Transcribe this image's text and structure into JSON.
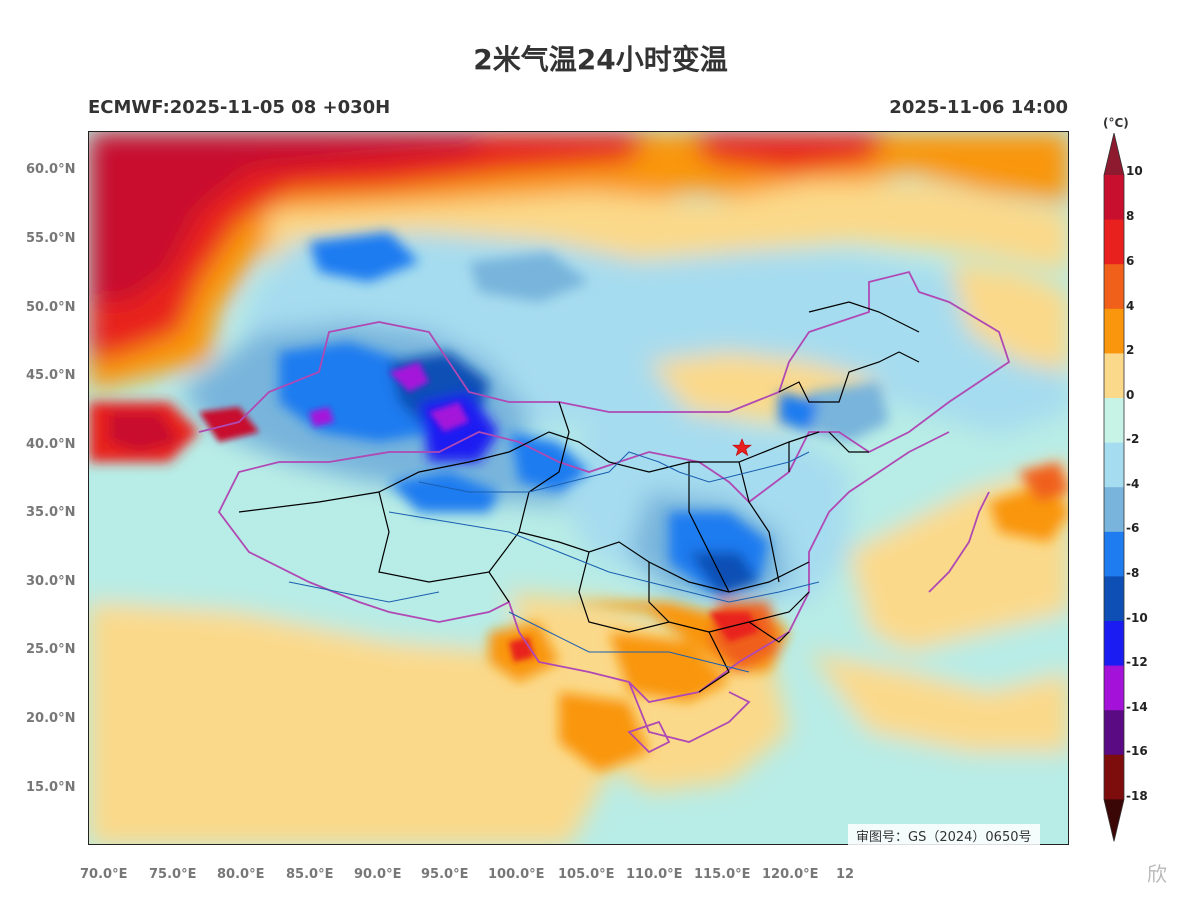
{
  "header": {
    "title": "2米气温24小时变温",
    "run_info": "ECMWF:2025-11-05 08 +030H",
    "valid_time": "2025-11-06 14:00"
  },
  "axes": {
    "lat_labels": [
      "60.0°N",
      "55.0°N",
      "50.0°N",
      "45.0°N",
      "40.0°N",
      "35.0°N",
      "30.0°N",
      "25.0°N",
      "20.0°N",
      "15.0°N"
    ],
    "lon_labels": [
      "70.0°E",
      "75.0°E",
      "80.0°E",
      "85.0°E",
      "90.0°E",
      "95.0°E",
      "100.0°E",
      "105.0°E",
      "110.0°E",
      "115.0°E",
      "120.0°E",
      "12"
    ]
  },
  "colorbar": {
    "unit": "(°C)",
    "labels": [
      "10",
      "8",
      "6",
      "4",
      "2",
      "0",
      "-2",
      "-4",
      "-6",
      "-8",
      "-10",
      "-12",
      "-14",
      "-16",
      "-18"
    ],
    "colors": [
      "#c8102e",
      "#e8201e",
      "#f0601a",
      "#f9960e",
      "#fbd98a",
      "#c6f3e6",
      "#a6dcef",
      "#78b4dc",
      "#1f7cf0",
      "#0d4fb5",
      "#1a1cf2",
      "#a412da",
      "#5a0a82",
      "#7d0c0c"
    ],
    "top_cap_color": "#8e1a30",
    "bottom_cap_color": "#3a0606"
  },
  "map": {
    "approval_number": "审图号：GS（2024）0650号",
    "beijing_marker": "star-red"
  },
  "watermark": {
    "text": "欣"
  }
}
